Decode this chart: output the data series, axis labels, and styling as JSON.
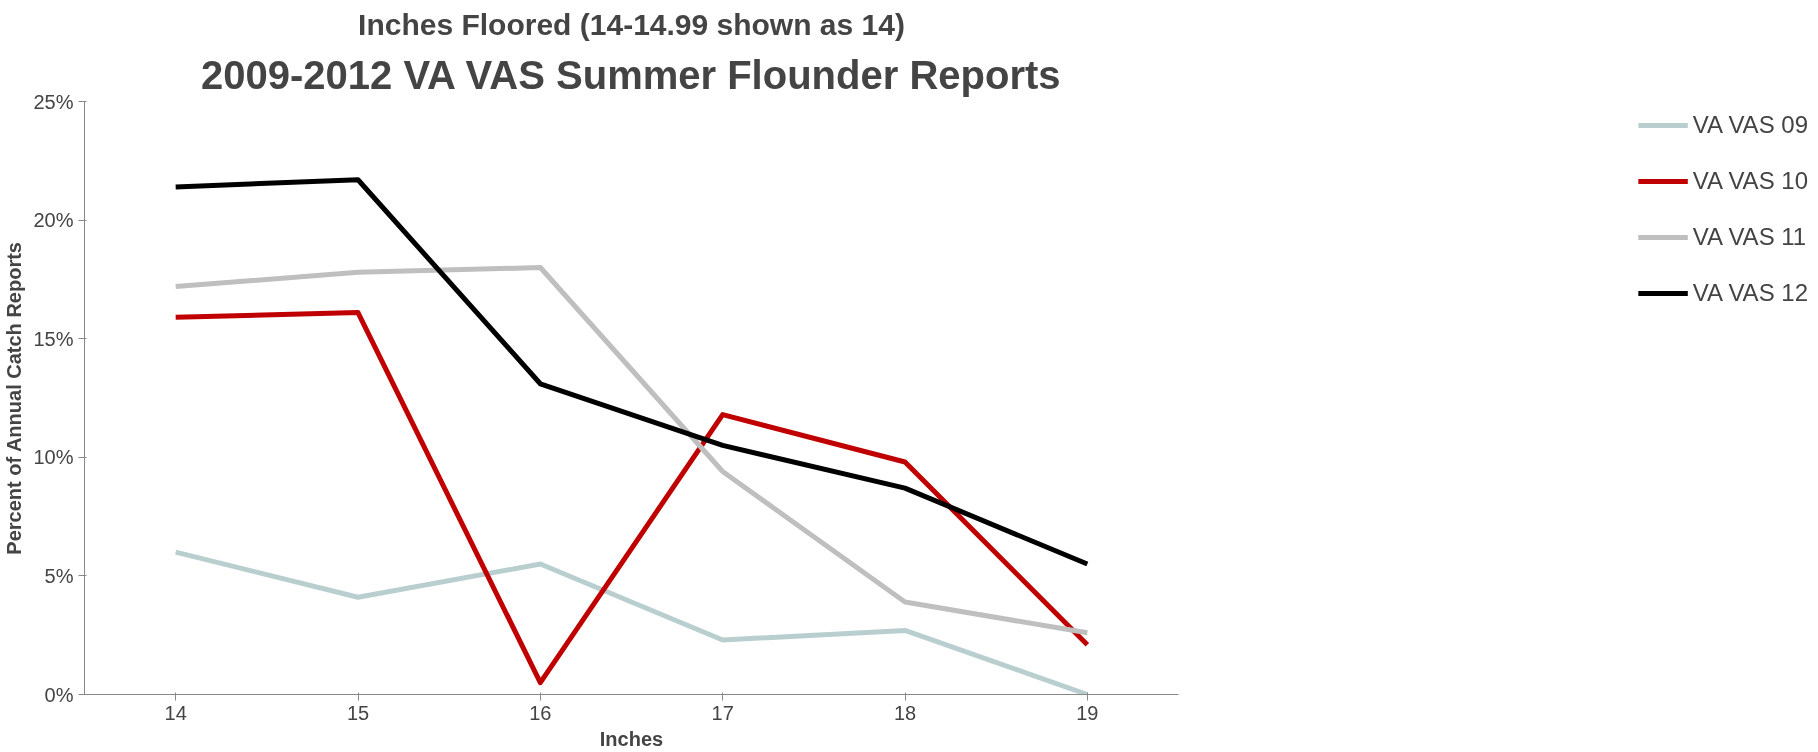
{
  "chart_data": {
    "type": "line",
    "title": "2009-2012 VA VAS Summer Flounder Reports",
    "subtitle": "Inches Floored (14-14.99 shown as 14)",
    "xlabel": "Inches",
    "ylabel": "Percent of Annual Catch Reports",
    "categories": [
      "14",
      "15",
      "16",
      "17",
      "18",
      "19"
    ],
    "series": [
      {
        "name": "VA VAS 09",
        "color": "#b9cfcf",
        "values": [
          6.0,
          4.1,
          5.5,
          2.3,
          2.7,
          0
        ]
      },
      {
        "name": "VA VAS 10",
        "color": "#c00000",
        "values": [
          15.9,
          16.1,
          0.5,
          11.8,
          9.8,
          2.1
        ]
      },
      {
        "name": "VA VAS 11",
        "color": "#bfbfbf",
        "values": [
          17.2,
          17.8,
          18.0,
          9.4,
          3.9,
          2.6
        ]
      },
      {
        "name": "VA VAS 12",
        "color": "#000000",
        "values": [
          21.4,
          21.7,
          13.1,
          10.5,
          8.7,
          5.5
        ]
      }
    ],
    "ylim": [
      0,
      25
    ],
    "yticks": [
      {
        "value": 0,
        "label": "0%"
      },
      {
        "value": 5,
        "label": "5%"
      },
      {
        "value": 10,
        "label": "10%"
      },
      {
        "value": 15,
        "label": "15%"
      },
      {
        "value": 20,
        "label": "20%"
      },
      {
        "value": 25,
        "label": "25%"
      }
    ],
    "grid": false,
    "legend": "right",
    "marker": "none",
    "line_style": "solid"
  }
}
